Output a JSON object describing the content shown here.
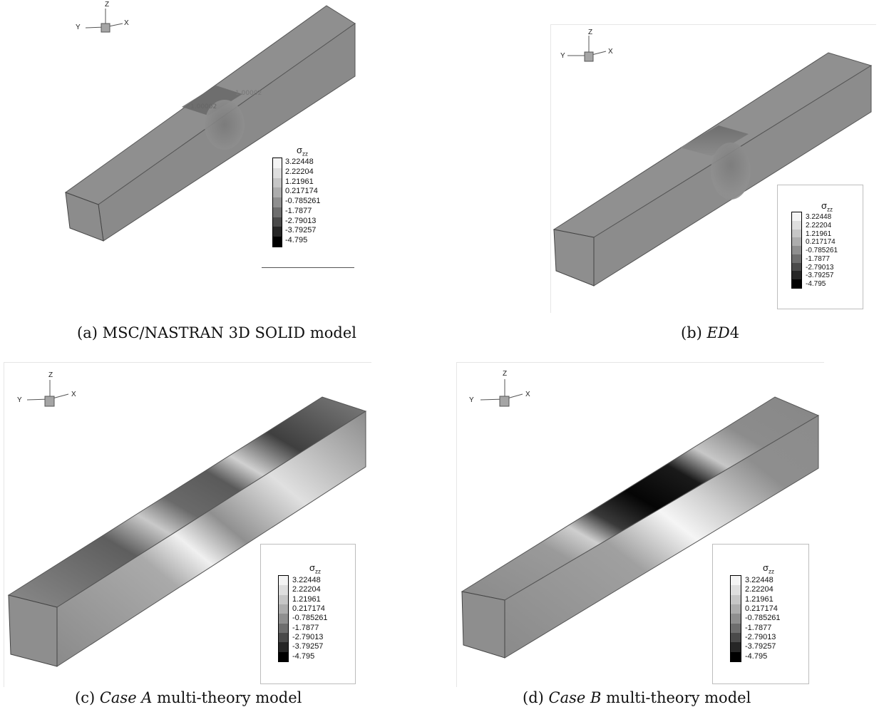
{
  "panels": [
    {
      "id": "a",
      "caption_prefix": "(a)",
      "caption_italic": "",
      "caption_rest": "MSC/NASTRAN 3D SOLID model"
    },
    {
      "id": "b",
      "caption_prefix": "(b)",
      "caption_italic": "ED",
      "caption_rest": "4"
    },
    {
      "id": "c",
      "caption_prefix": "(c)",
      "caption_italic": "Case A",
      "caption_rest": "multi-theory model"
    },
    {
      "id": "d",
      "caption_prefix": "(d)",
      "caption_italic": "Case B",
      "caption_rest": "multi-theory model"
    }
  ],
  "axes": {
    "x": "X",
    "y": "Y",
    "z": "Z"
  },
  "legend": {
    "symbol": "σ",
    "subscript": "zz",
    "levels": [
      "3.22448",
      "2.22204",
      "1.21961",
      "0.217174",
      "-0.785261",
      "-1.7877",
      "-2.79013",
      "-3.79257",
      "-4.795"
    ],
    "colors": [
      "#f4f4f4",
      "#dedede",
      "#c6c6c6",
      "#adadad",
      "#8f8f8f",
      "#6e6e6e",
      "#4a4a4a",
      "#262626",
      "#000000"
    ]
  },
  "annotations": {
    "label1": "1.00002",
    "label2": "1.00002"
  }
}
